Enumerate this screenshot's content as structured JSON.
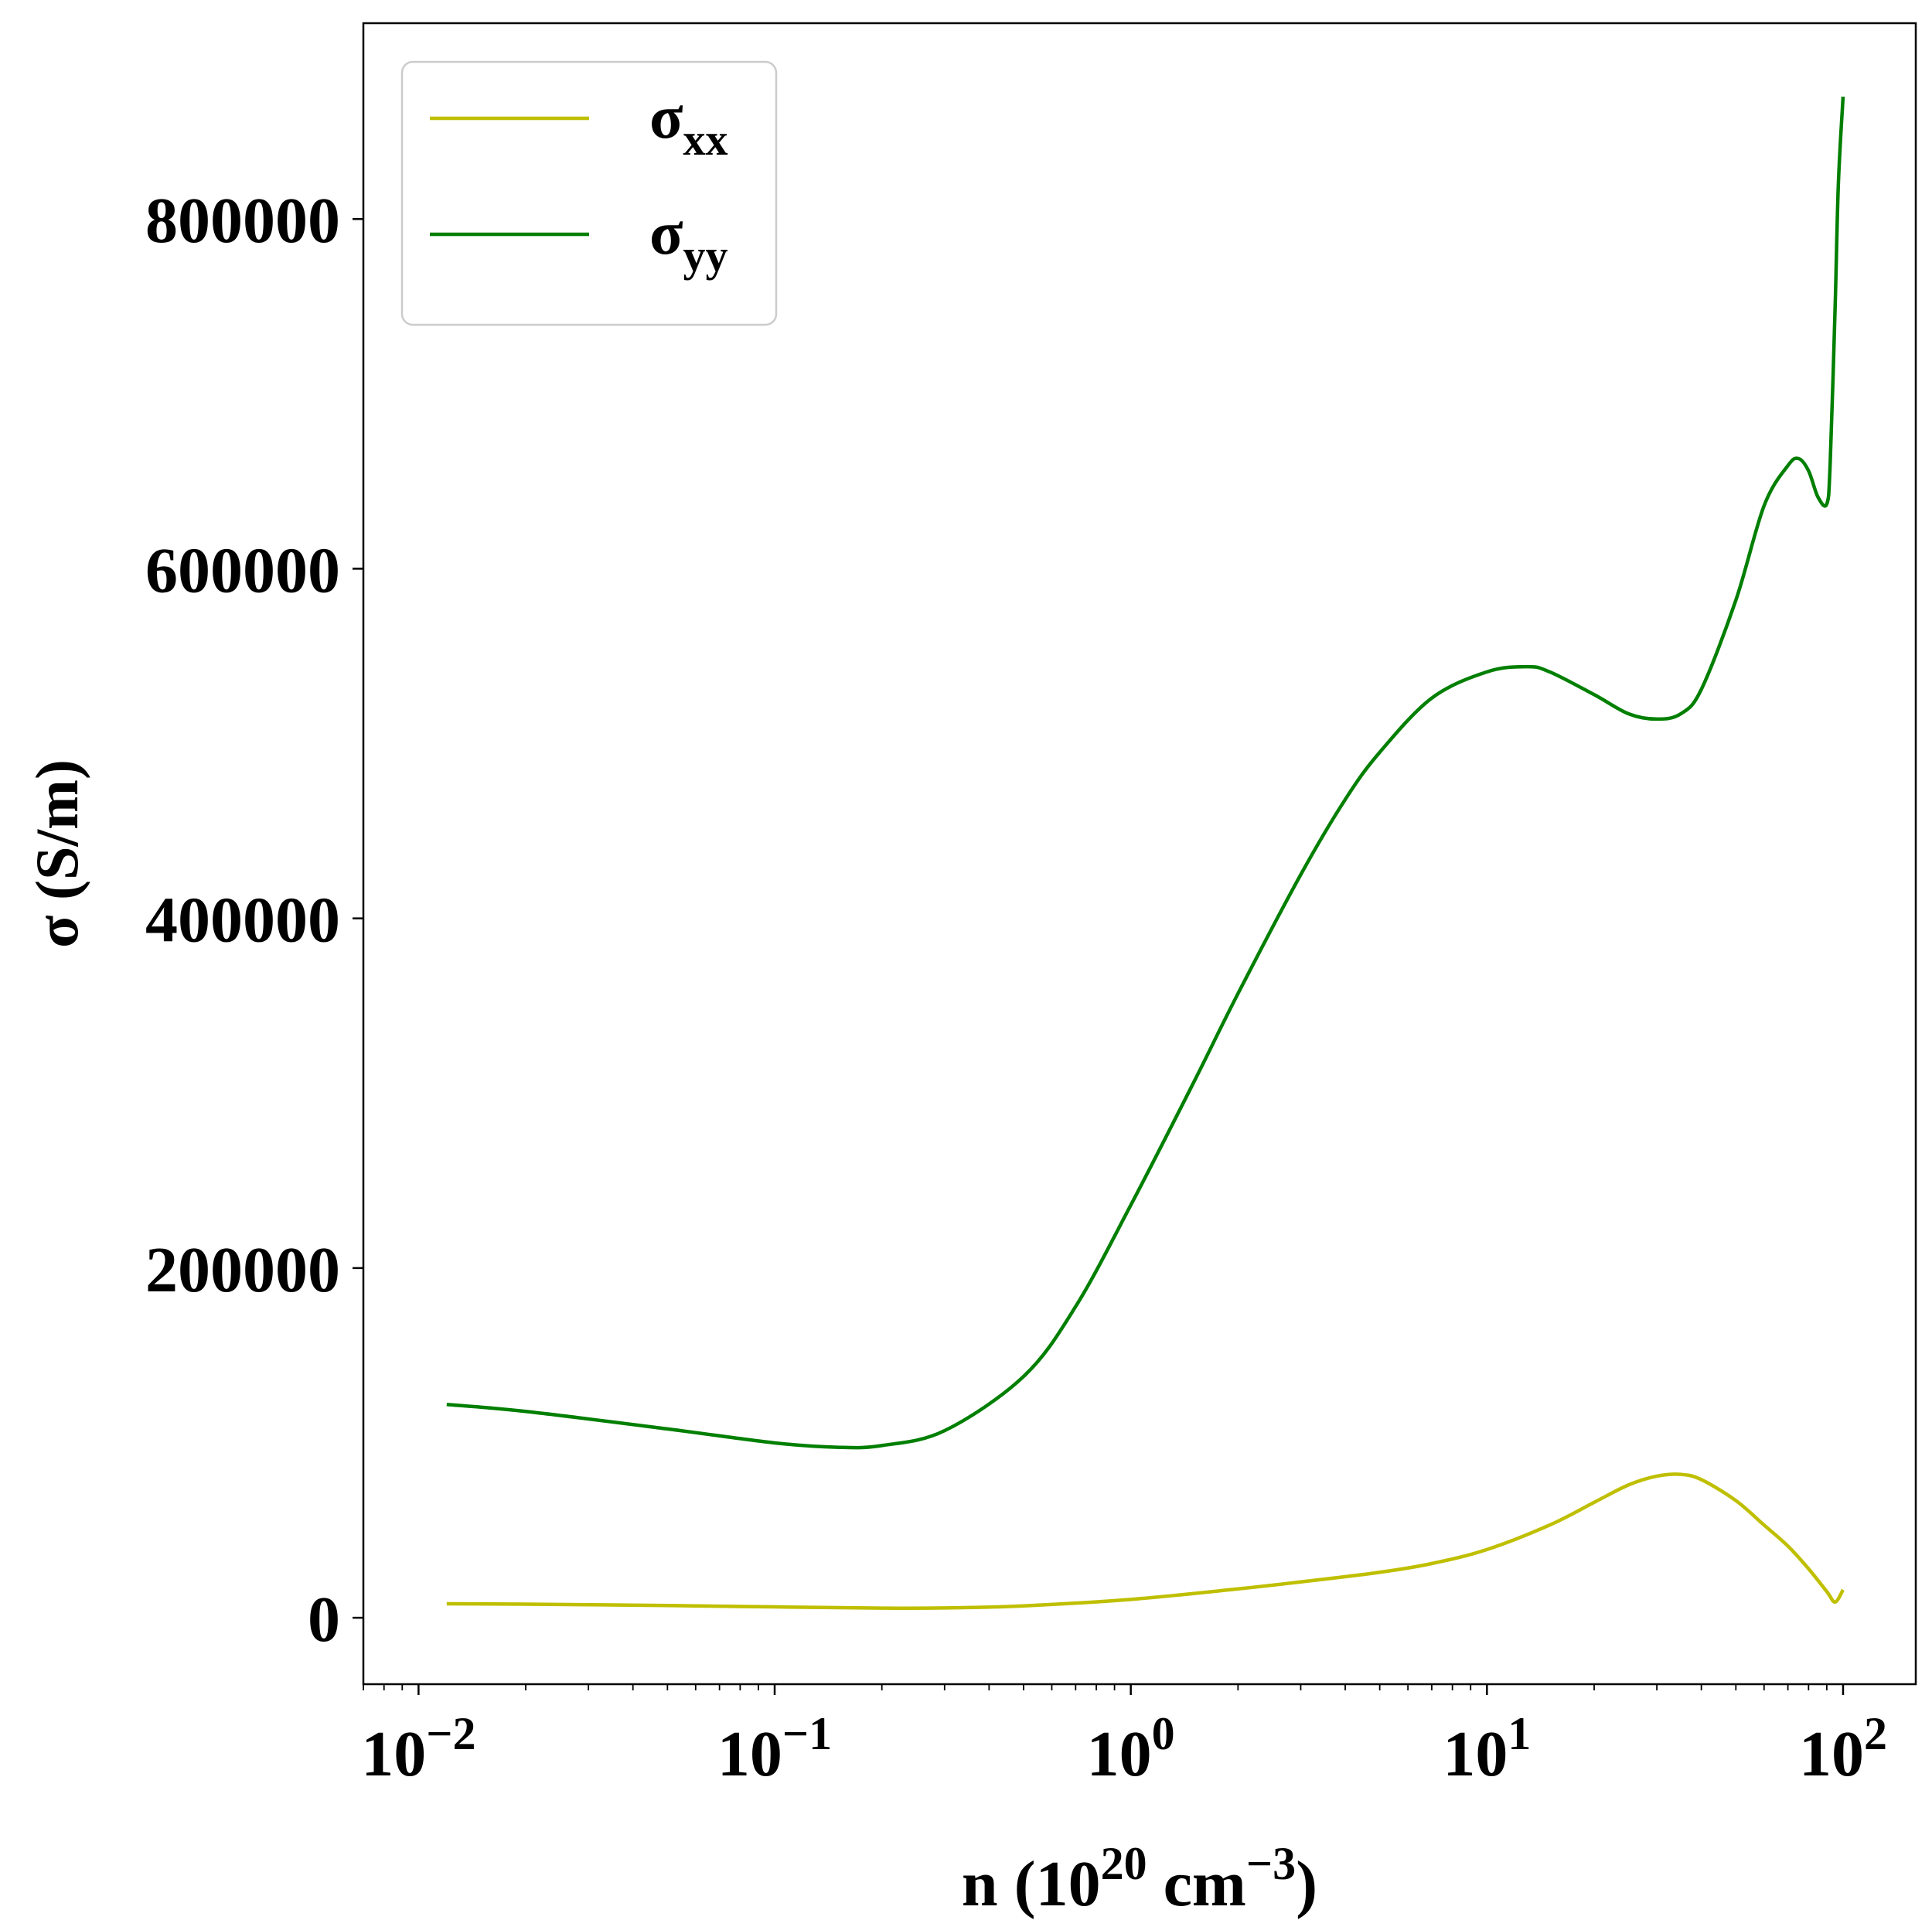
{
  "chart_data": {
    "type": "line",
    "xlabel": {
      "base": "n (10",
      "exp1": "20",
      "mid": " cm",
      "exp2": "−3",
      "end": ")"
    },
    "ylabel": "σ (S/m)",
    "xscale": "log",
    "xlim": [
      0.007,
      160
    ],
    "ylim": [
      -38000,
      912000
    ],
    "x_ticks": [
      {
        "value": 0.01,
        "base": "10",
        "exp": "−2"
      },
      {
        "value": 0.1,
        "base": "10",
        "exp": "−1"
      },
      {
        "value": 1,
        "base": "10",
        "exp": "0"
      },
      {
        "value": 10,
        "base": "10",
        "exp": "1"
      },
      {
        "value": 100,
        "base": "10",
        "exp": "2"
      }
    ],
    "y_ticks": [
      {
        "value": 0,
        "label": "0"
      },
      {
        "value": 200000,
        "label": "200000"
      },
      {
        "value": 400000,
        "label": "400000"
      },
      {
        "value": 600000,
        "label": "600000"
      },
      {
        "value": 800000,
        "label": "800000"
      }
    ],
    "legend": {
      "position": "top-left"
    },
    "series": [
      {
        "name": "σxx",
        "name_base": "σ",
        "name_sub": "xx",
        "color": "#bfbf00",
        "x": [
          0.012,
          0.02,
          0.05,
          0.1,
          0.2,
          0.3,
          0.5,
          1,
          2,
          3,
          5,
          7,
          10,
          15,
          20,
          25,
          30,
          35,
          40,
          50,
          60,
          70,
          80,
          90,
          95,
          100
        ],
        "y": [
          8000,
          7800,
          7000,
          6200,
          5500,
          5600,
          6800,
          10500,
          16500,
          20500,
          26000,
          31000,
          39000,
          53000,
          66000,
          76000,
          81000,
          82000,
          79000,
          67000,
          53000,
          41000,
          28000,
          15000,
          9000,
          16000
        ]
      },
      {
        "name": "σyy",
        "name_base": "σ",
        "name_sub": "yy",
        "color": "#007f00",
        "x": [
          0.012,
          0.02,
          0.05,
          0.1,
          0.15,
          0.2,
          0.3,
          0.5,
          0.7,
          1,
          1.5,
          2,
          3,
          4,
          5,
          7,
          10,
          13,
          15,
          20,
          25,
          30,
          35,
          40,
          50,
          60,
          70,
          75,
          80,
          85,
          90,
          92,
          95,
          97,
          100
        ],
        "y": [
          122000,
          118000,
          108000,
          100000,
          97500,
          98500,
          107000,
          138000,
          178000,
          236000,
          306000,
          357000,
          425000,
          468000,
          495000,
          526000,
          541000,
          544000,
          541000,
          528000,
          517000,
          514000,
          517000,
          531000,
          582000,
          636000,
          659000,
          663000,
          656000,
          641000,
          637000,
          660000,
          750000,
          820000,
          870000
        ]
      }
    ]
  }
}
